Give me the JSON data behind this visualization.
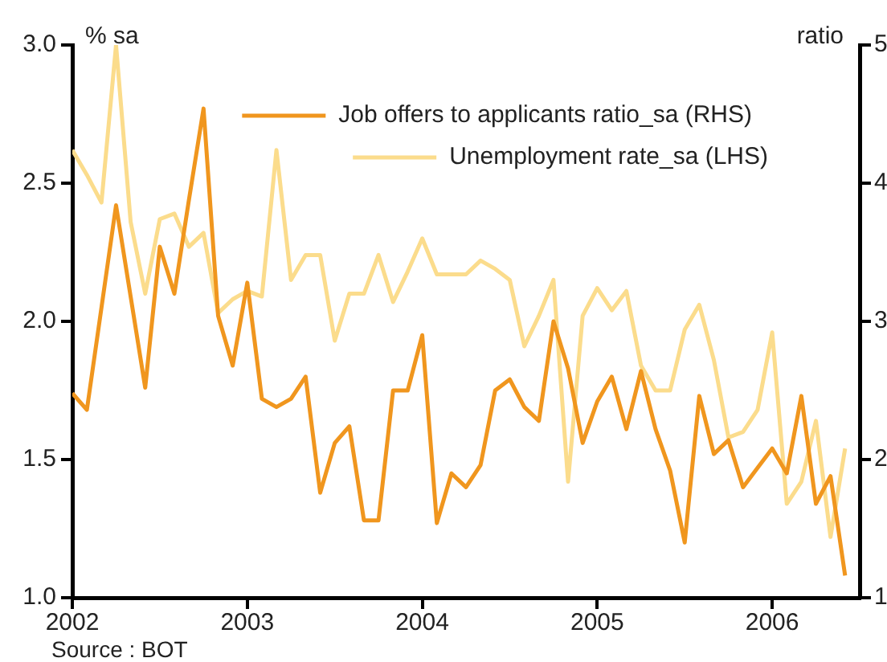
{
  "chart_data": {
    "type": "line",
    "ylabel": "% sa",
    "y2label": "ratio",
    "x": [
      "2002-01",
      "2002-02",
      "2002-03",
      "2002-04",
      "2002-05",
      "2002-06",
      "2002-07",
      "2002-08",
      "2002-09",
      "2002-10",
      "2002-11",
      "2002-12",
      "2003-01",
      "2003-02",
      "2003-03",
      "2003-04",
      "2003-05",
      "2003-06",
      "2003-07",
      "2003-08",
      "2003-09",
      "2003-10",
      "2003-11",
      "2003-12",
      "2004-01",
      "2004-02",
      "2004-03",
      "2004-04",
      "2004-05",
      "2004-06",
      "2004-07",
      "2004-08",
      "2004-09",
      "2004-10",
      "2004-11",
      "2004-12",
      "2005-01",
      "2005-02",
      "2005-03",
      "2005-04",
      "2005-05",
      "2005-06",
      "2005-07",
      "2005-08",
      "2005-09",
      "2005-10",
      "2005-11",
      "2005-12",
      "2006-01",
      "2006-02",
      "2006-03",
      "2006-04",
      "2006-05",
      "2006-06"
    ],
    "series": [
      {
        "name": "Job offers to applicants ratio_sa (RHS)",
        "color": "#f0961e",
        "axis": "y2",
        "values": [
          2.48,
          2.36,
          3.1,
          3.84,
          3.18,
          2.52,
          3.54,
          3.2,
          3.88,
          4.54,
          3.04,
          2.68,
          3.28,
          2.44,
          2.38,
          2.44,
          2.6,
          1.76,
          2.12,
          2.24,
          1.56,
          1.56,
          2.5,
          2.5,
          2.9,
          1.54,
          1.9,
          1.8,
          1.96,
          2.5,
          2.58,
          2.38,
          2.28,
          3.0,
          2.66,
          2.12,
          2.42,
          2.6,
          2.22,
          2.64,
          2.22,
          1.92,
          1.4,
          2.46,
          2.04,
          2.14,
          1.8,
          1.94,
          2.08,
          1.9,
          2.46,
          1.68,
          1.88,
          1.16
        ]
      },
      {
        "name": "Unemployment rate_sa (LHS)",
        "color": "#fbdc8c",
        "values": [
          2.62,
          2.53,
          2.43,
          3.0,
          2.36,
          2.1,
          2.37,
          2.39,
          2.27,
          2.32,
          2.03,
          2.08,
          2.11,
          2.09,
          2.62,
          2.15,
          2.24,
          2.24,
          1.93,
          2.1,
          2.1,
          2.24,
          2.07,
          2.18,
          2.3,
          2.17,
          2.17,
          2.17,
          2.22,
          2.19,
          2.15,
          1.91,
          2.02,
          2.15,
          1.42,
          2.02,
          2.12,
          2.04,
          2.11,
          1.84,
          1.75,
          1.75,
          1.97,
          2.06,
          1.86,
          1.58,
          1.6,
          1.68,
          1.96,
          1.34,
          1.42,
          1.64,
          1.22,
          1.54
        ]
      }
    ],
    "xlim": [
      "2002-01",
      "2006-07"
    ],
    "xticks": [
      "2002",
      "2003",
      "2004",
      "2005",
      "2006"
    ],
    "ylim": [
      1.0,
      3.0
    ],
    "yticks": [
      {
        "value": 1.0,
        "label": "1.0"
      },
      {
        "value": 1.5,
        "label": "1.5"
      },
      {
        "value": 2.0,
        "label": "2.0"
      },
      {
        "value": 2.5,
        "label": "2.5"
      },
      {
        "value": 3.0,
        "label": "3.0"
      }
    ],
    "y2lim": [
      1,
      5
    ],
    "y2ticks": [
      1,
      2,
      3,
      4,
      5
    ],
    "legend": "top right",
    "grid": false,
    "annotations": [
      "Source : BOT"
    ]
  }
}
